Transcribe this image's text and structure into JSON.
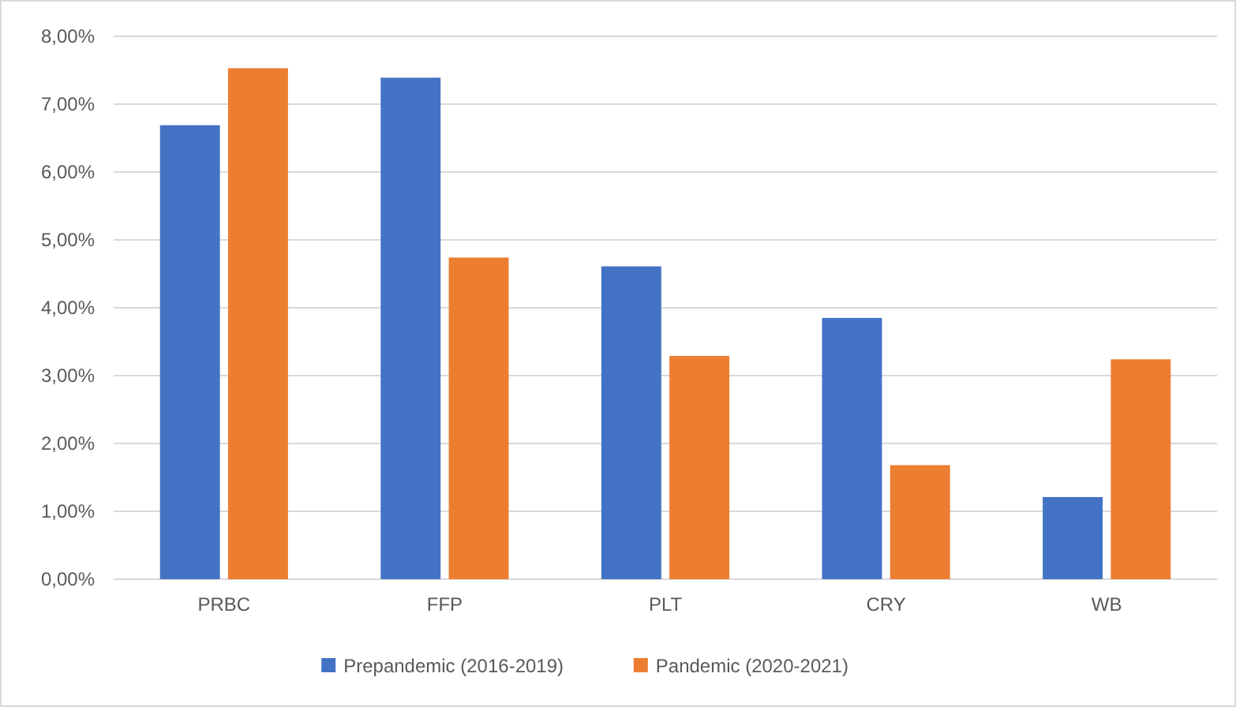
{
  "chart_data": {
    "type": "bar",
    "categories": [
      "PRBC",
      "FFP",
      "PLT",
      "CRY",
      "WB"
    ],
    "series": [
      {
        "name": "Prepandemic (2016-2019)",
        "color": "#4472c4",
        "values": [
          6.69,
          7.39,
          4.61,
          3.85,
          1.21
        ]
      },
      {
        "name": "Pandemic (2020-2021)",
        "color": "#ed7d31",
        "values": [
          7.53,
          4.74,
          3.29,
          1.68,
          3.24
        ]
      }
    ],
    "ylim": [
      0,
      8
    ],
    "yticks": [
      {
        "value": 0,
        "label": "0,00%"
      },
      {
        "value": 1,
        "label": "1,00%"
      },
      {
        "value": 2,
        "label": "2,00%"
      },
      {
        "value": 3,
        "label": "3,00%"
      },
      {
        "value": 4,
        "label": "4,00%"
      },
      {
        "value": 5,
        "label": "5,00%"
      },
      {
        "value": 6,
        "label": "6,00%"
      },
      {
        "value": 7,
        "label": "7,00%"
      },
      {
        "value": 8,
        "label": "8,00%"
      }
    ],
    "grid": "y",
    "legend": "bottom"
  }
}
